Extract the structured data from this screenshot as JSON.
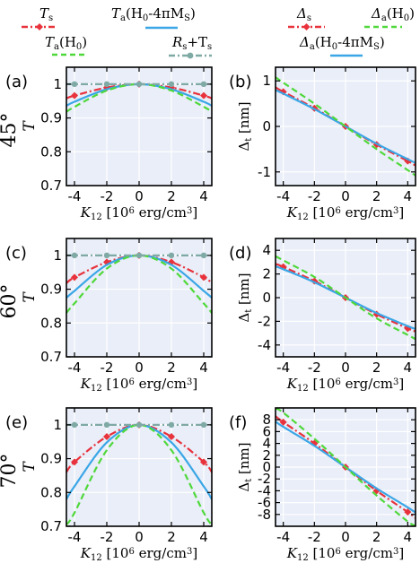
{
  "colors": {
    "red": "#e8323c",
    "blue": "#3aa6e6",
    "green": "#4fd83a",
    "teal": "#7fa9a5",
    "panel_bg": "#e9eef8",
    "grid": "#ffffff"
  },
  "legend_left": {
    "Ts": {
      "main": "T",
      "sub": "s"
    },
    "Ta_demag": {
      "main": "T",
      "sub": "a",
      "tail": "(H",
      "sub2": "0",
      "tail2": "-4πM",
      "sub3": "S",
      "tail3": ")"
    },
    "Ta_H0": {
      "main": "T",
      "sub": "a",
      "tail": "(H",
      "sub2": "0",
      "tail2": ")"
    },
    "Rs_Ts": {
      "main": "R",
      "sub": "s",
      "tail": "+T",
      "sub2": "s"
    }
  },
  "legend_right": {
    "Delta_s": {
      "main": "Δ",
      "sub": "s"
    },
    "Delta_a_H0": {
      "main": "Δ",
      "sub": "a",
      "tail": "(H",
      "sub2": "0",
      "tail2": ")"
    },
    "Delta_a_demag": {
      "main": "Δ",
      "sub": "a",
      "tail": "(H",
      "sub2": "0",
      "tail2": "-4πM",
      "sub3": "S",
      "tail3": ")"
    }
  },
  "rows": [
    {
      "angle": "45°",
      "left_tag": "(a)",
      "right_tag": "(b)"
    },
    {
      "angle": "60°",
      "left_tag": "(c)",
      "right_tag": "(d)"
    },
    {
      "angle": "70°",
      "left_tag": "(e)",
      "right_tag": "(f)"
    }
  ],
  "axis_text": {
    "x_main": "K",
    "x_sub": "12",
    "x_open": " [10",
    "x_sup": "6",
    "x_units": " erg/cm",
    "x_sup2": "3",
    "x_close": "]",
    "T_label": "T",
    "D_main": "Δ",
    "D_sub": "t",
    "D_units": " [nm]"
  },
  "chart_data": [
    {
      "panel": "(a)",
      "type": "line",
      "x_range": [
        -4.5,
        4.5
      ],
      "ylim": [
        0.7,
        1.05
      ],
      "xticks": [
        "-4",
        "-2",
        "0",
        "2",
        "4"
      ],
      "yticks": [
        "0.7",
        "0.8",
        "0.9",
        "1"
      ],
      "markers_x": [
        -4,
        -2,
        0,
        2,
        4
      ],
      "series": [
        {
          "key": "Ts",
          "color": "red",
          "style": "dash-dot-marker",
          "x": [
            -4.5,
            -4,
            -2,
            0,
            2,
            4,
            4.5
          ],
          "y": [
            0.958,
            0.966,
            0.99,
            1.0,
            0.99,
            0.966,
            0.958
          ]
        },
        {
          "key": "Ta_demag",
          "color": "blue",
          "style": "solid",
          "x": [
            -4.5,
            -4,
            -2,
            0,
            2,
            4,
            4.5
          ],
          "y": [
            0.936,
            0.948,
            0.985,
            1.0,
            0.985,
            0.948,
            0.936
          ]
        },
        {
          "key": "Ta_H0",
          "color": "green",
          "style": "dashed",
          "x": [
            -4.5,
            -4,
            -2,
            0,
            2,
            4,
            4.5
          ],
          "y": [
            0.918,
            0.933,
            0.981,
            1.0,
            0.981,
            0.933,
            0.918
          ]
        },
        {
          "key": "Rs_Ts",
          "color": "teal",
          "style": "dash-dot-marker",
          "x": [
            -4.5,
            -4,
            -2,
            0,
            2,
            4,
            4.5
          ],
          "y": [
            1.0,
            1.0,
            1.0,
            1.0,
            1.0,
            1.0,
            1.0
          ]
        }
      ]
    },
    {
      "panel": "(b)",
      "type": "line",
      "x_range": [
        -4.5,
        4.5
      ],
      "ylim": [
        -1.3,
        1.3
      ],
      "xticks": [
        "-4",
        "-2",
        "0",
        "2",
        "4"
      ],
      "yticks": [
        "-1",
        "0",
        "1"
      ],
      "markers_x": [
        -4,
        -2,
        0,
        2,
        4
      ],
      "series": [
        {
          "key": "Delta_s",
          "color": "red",
          "style": "dash-dot-marker",
          "x": [
            -4.5,
            -4,
            -2,
            0,
            2,
            4,
            4.5
          ],
          "y": [
            0.86,
            0.76,
            0.4,
            0.0,
            -0.4,
            -0.76,
            -0.86
          ]
        },
        {
          "key": "Delta_a_demag",
          "color": "blue",
          "style": "solid",
          "x": [
            -4.5,
            -4,
            -2,
            0,
            2,
            4,
            4.5
          ],
          "y": [
            0.8,
            0.72,
            0.38,
            0.0,
            -0.38,
            -0.72,
            -0.8
          ]
        },
        {
          "key": "Delta_a_H0",
          "color": "green",
          "style": "dashed",
          "x": [
            -4.5,
            -4,
            -2,
            0,
            2,
            4,
            4.5
          ],
          "y": [
            1.08,
            0.96,
            0.5,
            0.0,
            -0.5,
            -0.96,
            -1.08
          ]
        }
      ]
    },
    {
      "panel": "(c)",
      "type": "line",
      "x_range": [
        -4.5,
        4.5
      ],
      "ylim": [
        0.7,
        1.05
      ],
      "xticks": [
        "-4",
        "-2",
        "0",
        "2",
        "4"
      ],
      "yticks": [
        "0.7",
        "0.8",
        "0.9",
        "1"
      ],
      "markers_x": [
        -4,
        -2,
        0,
        2,
        4
      ],
      "series": [
        {
          "key": "Ts",
          "color": "red",
          "style": "dash-dot-marker",
          "x": [
            -4.5,
            -4,
            -2,
            0,
            2,
            4,
            4.5
          ],
          "y": [
            0.918,
            0.935,
            0.98,
            1.0,
            0.98,
            0.935,
            0.918
          ]
        },
        {
          "key": "Ta_demag",
          "color": "blue",
          "style": "solid",
          "x": [
            -4.5,
            -4,
            -2,
            0,
            2,
            4,
            4.5
          ],
          "y": [
            0.875,
            0.895,
            0.972,
            1.0,
            0.972,
            0.895,
            0.875
          ]
        },
        {
          "key": "Ta_H0",
          "color": "green",
          "style": "dashed",
          "x": [
            -4.5,
            -4,
            -2,
            0,
            2,
            4,
            4.5
          ],
          "y": [
            0.83,
            0.858,
            0.961,
            1.0,
            0.961,
            0.858,
            0.83
          ]
        },
        {
          "key": "Rs_Ts",
          "color": "teal",
          "style": "dash-dot-marker",
          "x": [
            -4.5,
            -4,
            -2,
            0,
            2,
            4,
            4.5
          ],
          "y": [
            1.0,
            1.0,
            1.0,
            1.0,
            1.0,
            1.0,
            1.0
          ]
        }
      ]
    },
    {
      "panel": "(d)",
      "type": "line",
      "x_range": [
        -4.5,
        4.5
      ],
      "ylim": [
        -5,
        5
      ],
      "xticks": [
        "-4",
        "-2",
        "0",
        "2",
        "4"
      ],
      "yticks": [
        "-4",
        "-2",
        "0",
        "2",
        "4"
      ],
      "markers_x": [
        -4,
        -2,
        0,
        2,
        4
      ],
      "series": [
        {
          "key": "Delta_s",
          "color": "red",
          "style": "dash-dot-marker",
          "x": [
            -4.5,
            -4,
            -2,
            0,
            2,
            4,
            4.5
          ],
          "y": [
            2.85,
            2.6,
            1.4,
            0.0,
            -1.4,
            -2.6,
            -2.85
          ]
        },
        {
          "key": "Delta_a_demag",
          "color": "blue",
          "style": "solid",
          "x": [
            -4.5,
            -4,
            -2,
            0,
            2,
            4,
            4.5
          ],
          "y": [
            2.65,
            2.4,
            1.3,
            0.0,
            -1.3,
            -2.4,
            -2.65
          ]
        },
        {
          "key": "Delta_a_H0",
          "color": "green",
          "style": "dashed",
          "x": [
            -4.5,
            -4,
            -2,
            0,
            2,
            4,
            4.5
          ],
          "y": [
            3.5,
            3.15,
            1.75,
            0.0,
            -1.75,
            -3.15,
            -3.5
          ]
        }
      ]
    },
    {
      "panel": "(e)",
      "type": "line",
      "x_range": [
        -4.5,
        4.5
      ],
      "ylim": [
        0.7,
        1.05
      ],
      "xticks": [
        "-4",
        "-2",
        "0",
        "2",
        "4"
      ],
      "yticks": [
        "0.7",
        "0.8",
        "0.9",
        "1"
      ],
      "markers_x": [
        -4,
        -2,
        0,
        2,
        4
      ],
      "series": [
        {
          "key": "Ts",
          "color": "red",
          "style": "dash-dot-marker",
          "x": [
            -4.5,
            -4,
            -2,
            0,
            2,
            4,
            4.5
          ],
          "y": [
            0.86,
            0.89,
            0.965,
            1.0,
            0.965,
            0.89,
            0.86
          ]
        },
        {
          "key": "Ta_demag",
          "color": "blue",
          "style": "solid",
          "x": [
            -4.5,
            -4,
            -2,
            0,
            2,
            4,
            4.5
          ],
          "y": [
            0.78,
            0.818,
            0.948,
            1.0,
            0.948,
            0.818,
            0.78
          ]
        },
        {
          "key": "Ta_H0",
          "color": "green",
          "style": "dashed",
          "x": [
            -4.5,
            -4,
            -2,
            0,
            2,
            4,
            4.5
          ],
          "y": [
            0.705,
            0.74,
            0.925,
            1.0,
            0.925,
            0.74,
            0.705
          ]
        },
        {
          "key": "Rs_Ts",
          "color": "teal",
          "style": "dash-dot-marker",
          "x": [
            -4.5,
            -4,
            -2,
            0,
            2,
            4,
            4.5
          ],
          "y": [
            1.0,
            1.0,
            1.0,
            1.0,
            1.0,
            1.0,
            1.0
          ]
        }
      ]
    },
    {
      "panel": "(f)",
      "type": "line",
      "x_range": [
        -4.5,
        4.5
      ],
      "ylim": [
        -10,
        10
      ],
      "xticks": [
        "-4",
        "-2",
        "0",
        "2",
        "4"
      ],
      "yticks": [
        "-8",
        "-6",
        "-4",
        "-2",
        "0",
        "2",
        "4",
        "6",
        "8"
      ],
      "markers_x": [
        -4,
        -2,
        0,
        2,
        4
      ],
      "series": [
        {
          "key": "Delta_s",
          "color": "red",
          "style": "dash-dot-marker",
          "x": [
            -4.5,
            -4,
            -2,
            0,
            2,
            4,
            4.5
          ],
          "y": [
            8.6,
            7.6,
            4.0,
            0.0,
            -4.0,
            -7.6,
            -8.6
          ]
        },
        {
          "key": "Delta_a_demag",
          "color": "blue",
          "style": "solid",
          "x": [
            -4.5,
            -4,
            -2,
            0,
            2,
            4,
            4.5
          ],
          "y": [
            7.7,
            6.8,
            3.6,
            0.0,
            -3.6,
            -6.8,
            -7.7
          ]
        },
        {
          "key": "Delta_a_H0",
          "color": "green",
          "style": "dashed",
          "x": [
            -4.5,
            -4,
            -2,
            0,
            2,
            4,
            4.5
          ],
          "y": [
            9.9,
            9.2,
            4.8,
            0.0,
            -4.8,
            -9.2,
            -9.9
          ]
        }
      ]
    }
  ]
}
